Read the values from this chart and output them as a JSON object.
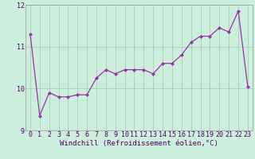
{
  "xlabel": "Windchill (Refroidissement éolien,°C)",
  "x": [
    0,
    1,
    2,
    3,
    4,
    5,
    6,
    7,
    8,
    9,
    10,
    11,
    12,
    13,
    14,
    15,
    16,
    17,
    18,
    19,
    20,
    21,
    22,
    23
  ],
  "y": [
    11.3,
    9.35,
    9.9,
    9.8,
    9.8,
    9.85,
    9.85,
    10.25,
    10.45,
    10.35,
    10.45,
    10.45,
    10.45,
    10.35,
    10.6,
    10.6,
    10.8,
    11.1,
    11.25,
    11.25,
    11.45,
    11.35,
    11.85,
    10.05
  ],
  "line_color": "#9933aa",
  "marker": "D",
  "marker_size": 2.0,
  "background_color": "#cceedd",
  "grid_color": "#aaccbb",
  "ylim": [
    9.0,
    12.0
  ],
  "yticks": [
    9,
    10,
    11,
    12
  ],
  "xticks": [
    0,
    1,
    2,
    3,
    4,
    5,
    6,
    7,
    8,
    9,
    10,
    11,
    12,
    13,
    14,
    15,
    16,
    17,
    18,
    19,
    20,
    21,
    22,
    23
  ],
  "label_fontsize": 6.5,
  "tick_fontsize": 6.0
}
